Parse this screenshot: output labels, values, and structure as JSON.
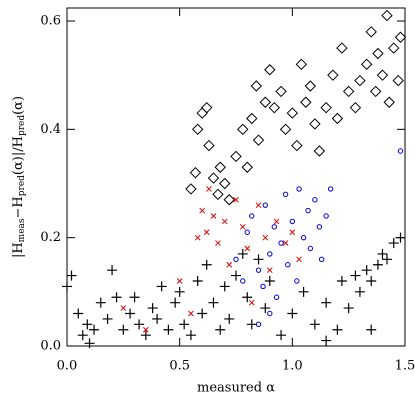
{
  "chart_data": {
    "type": "scatter",
    "xlabel": "measured α",
    "ylabel": [
      "|H",
      "meas",
      "−H",
      "pred",
      "(α)|/H",
      "pred",
      "(α)"
    ],
    "xlim": [
      0,
      1.5
    ],
    "ylim": [
      0,
      0.624
    ],
    "xticks": [
      {
        "value": 0,
        "label": "0.0"
      },
      0.5,
      {
        "value": 1,
        "label": "1.0"
      },
      1.5
    ],
    "yticks": [
      {
        "value": 0,
        "label": "0.0"
      },
      0.2,
      0.4,
      0.6
    ],
    "series": [
      {
        "marker": "diamond",
        "color": "#000000",
        "x": [
          0.55,
          0.57,
          0.58,
          0.6,
          0.62,
          0.63,
          0.65,
          0.67,
          0.68,
          0.7,
          0.72,
          0.75,
          0.78,
          0.8,
          0.82,
          0.84,
          0.85,
          0.88,
          0.9,
          0.92,
          0.95,
          0.97,
          1.0,
          1.02,
          1.04,
          1.06,
          1.08,
          1.1,
          1.12,
          1.15,
          1.18,
          1.2,
          1.22,
          1.25,
          1.28,
          1.3,
          1.33,
          1.35,
          1.37,
          1.4,
          1.42,
          1.45,
          1.47,
          1.48,
          1.43,
          1.38
        ],
        "values": [
          0.29,
          0.32,
          0.4,
          0.43,
          0.44,
          0.37,
          0.31,
          0.28,
          0.33,
          0.3,
          0.27,
          0.35,
          0.4,
          0.33,
          0.42,
          0.48,
          0.38,
          0.45,
          0.51,
          0.44,
          0.47,
          0.4,
          0.43,
          0.37,
          0.52,
          0.45,
          0.48,
          0.41,
          0.36,
          0.44,
          0.5,
          0.42,
          0.55,
          0.47,
          0.44,
          0.49,
          0.52,
          0.58,
          0.47,
          0.5,
          0.61,
          0.55,
          0.49,
          0.57,
          0.45,
          0.54
        ]
      },
      {
        "marker": "plus",
        "color": "#000000",
        "x": [
          0,
          0.02,
          0.05,
          0.07,
          0.09,
          0.1,
          0.12,
          0.15,
          0.18,
          0.2,
          0.22,
          0.25,
          0.28,
          0.3,
          0.32,
          0.35,
          0.38,
          0.4,
          0.42,
          0.45,
          0.48,
          0.5,
          0.52,
          0.55,
          0.58,
          0.6,
          0.62,
          0.65,
          0.68,
          0.7,
          0.72,
          0.75,
          0.78,
          0.8,
          0.82,
          0.85,
          0.88,
          0.9,
          0.95,
          1.0,
          1.05,
          1.1,
          1.15,
          1.2,
          1.22,
          1.25,
          1.28,
          1.3,
          1.33,
          1.35,
          1.38,
          1.4,
          1.42,
          1.45,
          1.48,
          1.15,
          1.35
        ],
        "values": [
          0.11,
          0.13,
          0.06,
          0.02,
          0.04,
          0.005,
          0.03,
          0.08,
          0.05,
          0.14,
          0.09,
          0.03,
          0.06,
          0.09,
          0.04,
          0.02,
          0.07,
          0.05,
          0.11,
          0.03,
          0.08,
          0.1,
          0.04,
          0.02,
          0.12,
          0.06,
          0.15,
          0.08,
          0.03,
          0.11,
          0.05,
          0.13,
          0.17,
          0.09,
          0.04,
          0.16,
          0.07,
          0.12,
          0.02,
          0.06,
          0.1,
          0.04,
          0.08,
          0.03,
          0.12,
          0.07,
          0.13,
          0.1,
          0.14,
          0.12,
          0.15,
          0.17,
          0.16,
          0.19,
          0.2,
          0.01,
          0.03
        ]
      },
      {
        "marker": "cross",
        "color": "#e00000",
        "x": [
          0.5,
          0.55,
          0.58,
          0.6,
          0.62,
          0.63,
          0.65,
          0.67,
          0.7,
          0.72,
          0.75,
          0.78,
          0.8,
          0.82,
          0.85,
          0.88,
          0.9,
          0.93,
          0.97,
          1.0,
          1.03,
          0.35,
          0.25
        ],
        "values": [
          0.12,
          0.06,
          0.2,
          0.25,
          0.21,
          0.29,
          0.24,
          0.19,
          0.23,
          0.15,
          0.27,
          0.22,
          0.18,
          0.08,
          0.26,
          0.2,
          0.14,
          0.23,
          0.19,
          0.21,
          0.16,
          0.03,
          0.07
        ]
      },
      {
        "marker": "circle",
        "color": "#0000e0",
        "x": [
          0.75,
          0.78,
          0.8,
          0.82,
          0.85,
          0.87,
          0.88,
          0.9,
          0.92,
          0.93,
          0.95,
          0.97,
          0.98,
          1.0,
          1.02,
          1.03,
          1.05,
          1.07,
          1.08,
          1.1,
          1.12,
          1.13,
          1.15,
          1.17,
          1.48,
          0.9,
          0.85
        ],
        "values": [
          0.16,
          0.12,
          0.21,
          0.24,
          0.14,
          0.11,
          0.26,
          0.17,
          0.22,
          0.09,
          0.19,
          0.28,
          0.15,
          0.23,
          0.12,
          0.29,
          0.2,
          0.25,
          0.18,
          0.27,
          0.22,
          0.16,
          0.24,
          0.29,
          0.36,
          0.06,
          0.04
        ]
      }
    ]
  }
}
